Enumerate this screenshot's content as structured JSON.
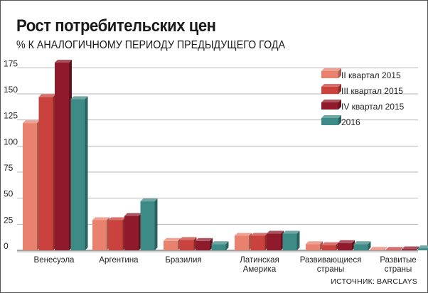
{
  "title": "Рост потребительских цен",
  "subtitle": "% К АНАЛОГИЧНОМУ ПЕРИОДУ ПРЕДЫДУЩЕГО ГОДА",
  "source": "ИСТОЧНИК: BARCLAYS",
  "colors": {
    "q2_2015": "#e8826f",
    "q3_2015": "#c9423d",
    "q4_2015": "#8e1a2b",
    "y2016": "#3e8a86"
  },
  "chart_data": {
    "type": "bar",
    "title": "Рост потребительских цен",
    "subtitle": "% К АНАЛОГИЧНОМУ ПЕРИОДУ ПРЕДЫДУЩЕГО ГОДА",
    "categories": [
      [
        "Венесуэла"
      ],
      [
        "Аргентина"
      ],
      [
        "Бразилия"
      ],
      [
        "Латинская",
        "Америка"
      ],
      [
        "Развивающиеся",
        "страны"
      ],
      [
        "Развитые",
        "страны"
      ]
    ],
    "series": [
      {
        "name": "II квартал 2015",
        "color": "#e8826f",
        "values": [
          122,
          29,
          9,
          14,
          6,
          0.5
        ]
      },
      {
        "name": "III квартал 2015",
        "color": "#c9423d",
        "values": [
          147,
          29,
          10,
          14,
          5,
          0.5
        ]
      },
      {
        "name": "IV квартал 2015",
        "color": "#8e1a2b",
        "values": [
          180,
          33,
          9,
          16,
          7,
          1
        ]
      },
      {
        "name": "2016",
        "color": "#3e8a86",
        "values": [
          145,
          47,
          6,
          16,
          6,
          2
        ]
      }
    ],
    "yticks": [
      0,
      25,
      50,
      75,
      100,
      125,
      150,
      175
    ],
    "ylim": [
      0,
      180
    ],
    "grid": true,
    "legend": "top-right"
  }
}
